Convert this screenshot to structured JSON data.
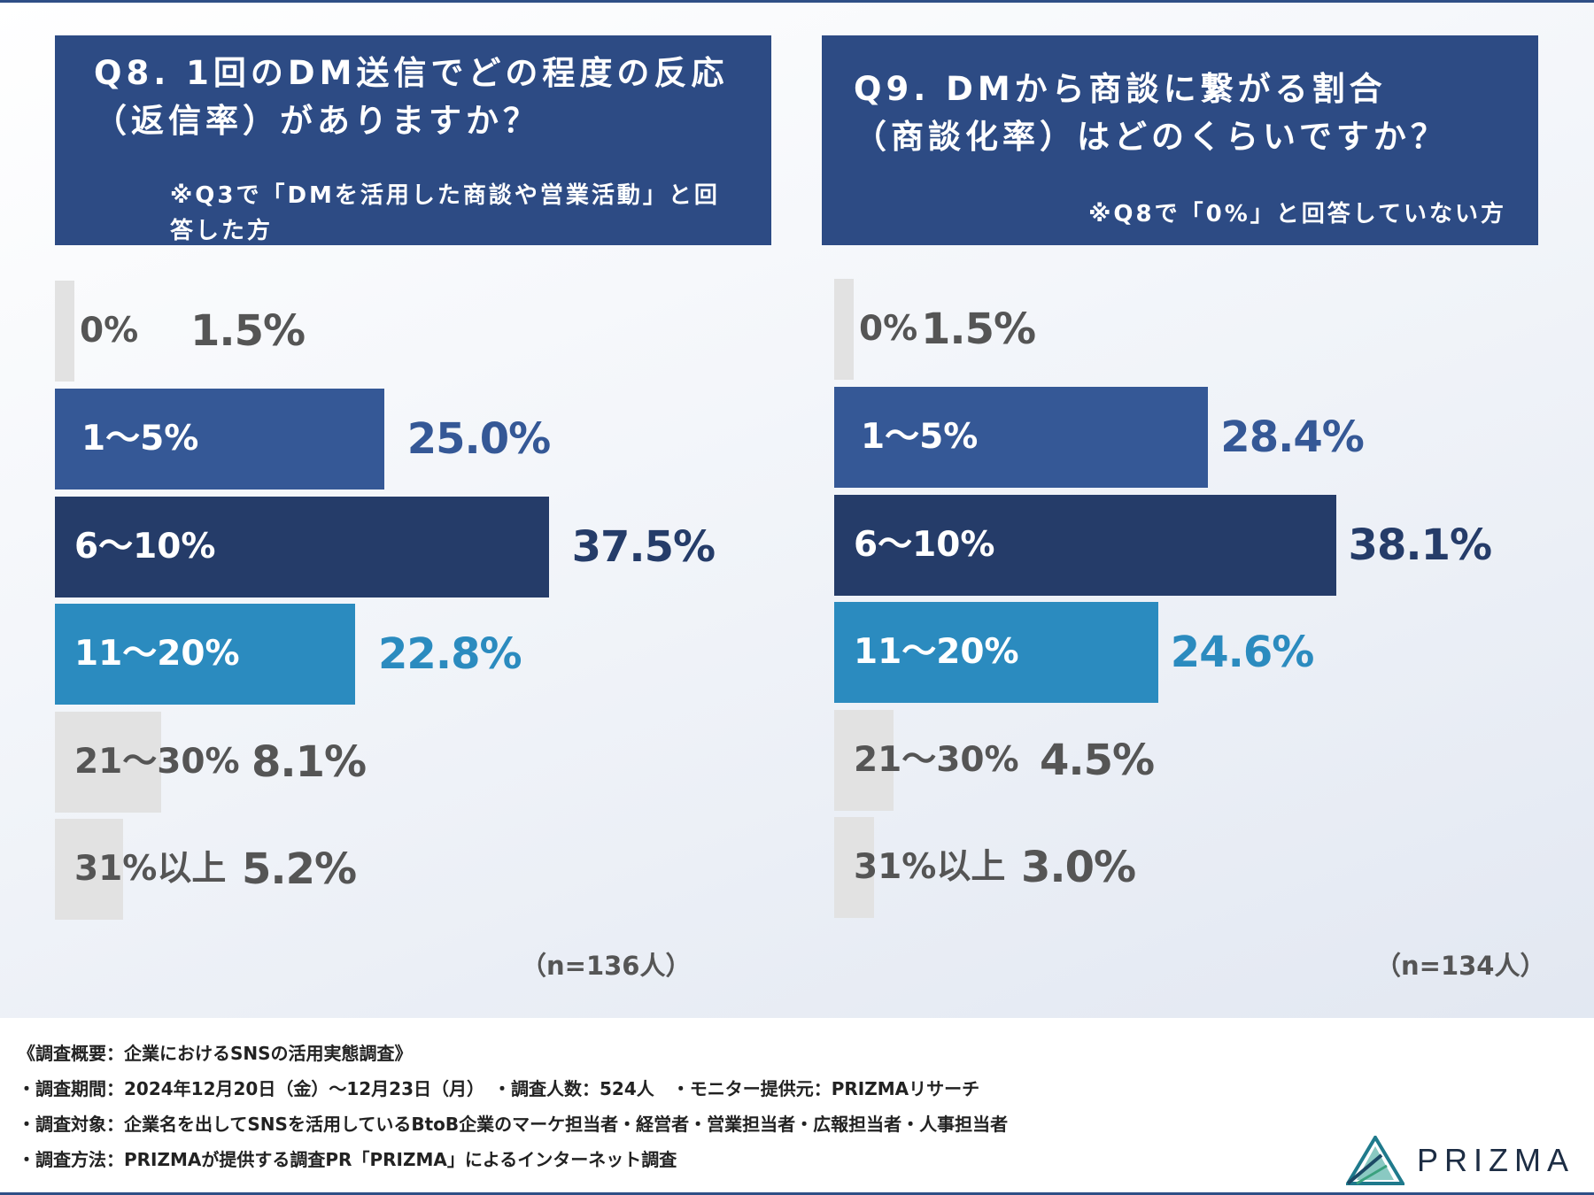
{
  "q8": {
    "title_line1": "Q8. 1回のDM送信でどの程度の反応",
    "title_line2": "（返信率）がありますか？",
    "note": "※Q3で「DMを活用した商談や営業活動」と回答した方",
    "n_label": "（n=136人）"
  },
  "q9": {
    "title_line1": "Q9. DMから商談に繋がる割合",
    "title_line2": "（商談化率）はどのくらいですか？",
    "note": "※Q8で「0%」と回答していない方",
    "n_label": "（n=134人）"
  },
  "colors": {
    "header_bg": "#2d4b84",
    "cat_1_5": "#355896",
    "cat_6_10": "#253c69",
    "cat_11_20": "#2b8bbf",
    "cat_small": "#e2e2e2",
    "small_text": "#555555"
  },
  "chart_data": [
    {
      "type": "bar",
      "orientation": "horizontal",
      "title": "Q8. 1回のDM送信でどの程度の反応（返信率）がありますか？",
      "categories": [
        "0%",
        "1～5%",
        "6～10%",
        "11～20%",
        "21～30%",
        "31%以上"
      ],
      "values": [
        1.5,
        25.0,
        37.5,
        22.8,
        8.1,
        5.2
      ],
      "value_labels": [
        "1.5%",
        "25.0%",
        "37.5%",
        "22.8%",
        "8.1%",
        "5.2%"
      ],
      "unit": "%",
      "xlim": [
        0,
        100
      ],
      "n": 136
    },
    {
      "type": "bar",
      "orientation": "horizontal",
      "title": "Q9. DMから商談に繋がる割合（商談化率）はどのくらいですか？",
      "categories": [
        "0%",
        "1～5%",
        "6～10%",
        "11～20%",
        "21～30%",
        "31%以上"
      ],
      "values": [
        1.5,
        28.4,
        38.1,
        24.6,
        4.5,
        3.0
      ],
      "value_labels": [
        "1.5%",
        "28.4%",
        "38.1%",
        "24.6%",
        "4.5%",
        "3.0%"
      ],
      "unit": "%",
      "xlim": [
        0,
        100
      ],
      "n": 134
    }
  ],
  "footer": {
    "line1": "《調査概要：企業におけるSNSの活用実態調査》",
    "line2": "・調査期間：2024年12月20日（金）～12月23日（月）　・調査人数：524人　・モニター提供元：PRIZMAリサーチ",
    "line3": "・調査対象：企業名を出してSNSを活用しているBtoB企業のマーケ担当者・経営者・営業担当者・広報担当者・人事担当者",
    "line4": "・調査方法：PRIZMAが提供する調査PR「PRIZMA」によるインターネット調査"
  },
  "logo": {
    "text": "PRIZMA",
    "icon": "prism-triangle-icon"
  }
}
